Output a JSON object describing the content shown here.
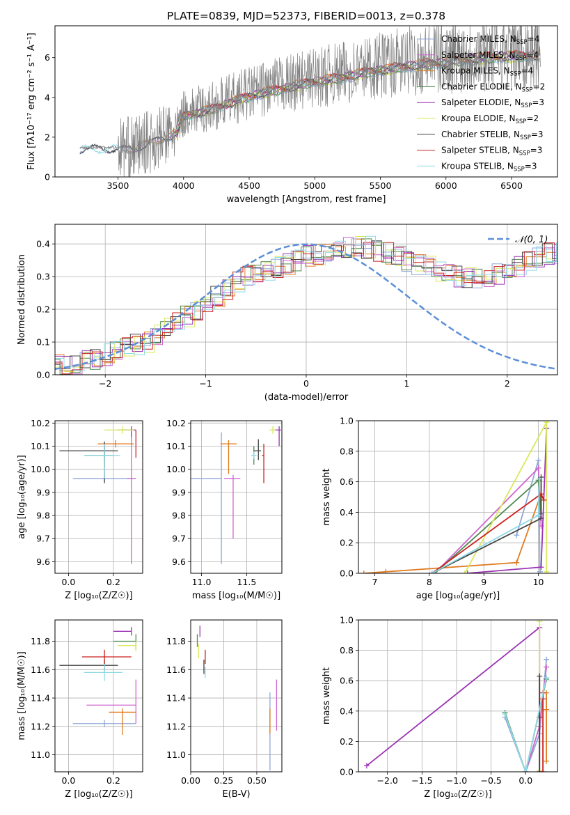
{
  "title": "PLATE=0839, MJD=52373, FIBERID=0013, z=0.378",
  "models": [
    {
      "name": "Chabrier MILES",
      "n": "4",
      "color": "#8fa8d6"
    },
    {
      "name": "Salpeter MILES",
      "n": "4",
      "color": "#d066d0"
    },
    {
      "name": "Kroupa MILES",
      "n": "4",
      "color": "#e07b20"
    },
    {
      "name": "Chabrier ELODIE",
      "n": "2",
      "color": "#4e8a4e"
    },
    {
      "name": "Salpeter ELODIE",
      "n": "3",
      "color": "#9b33b3"
    },
    {
      "name": "Kroupa ELODIE",
      "n": "2",
      "color": "#d9e85a"
    },
    {
      "name": "Chabrier STELIB",
      "n": "3",
      "color": "#444444"
    },
    {
      "name": "Salpeter STELIB",
      "n": "3",
      "color": "#cc1f1f"
    },
    {
      "name": "Kroupa STELIB",
      "n": "3",
      "color": "#8fd9e6"
    }
  ],
  "chart_data": [
    {
      "id": "spectrum",
      "type": "line",
      "xlabel": "wavelength [Angstrom, rest frame]",
      "ylabel": "Flux [fλ10⁻¹⁷ erg cm⁻² s⁻¹ A⁻¹]",
      "xlim": [
        3020,
        6850
      ],
      "ylim": [
        0,
        7.6
      ],
      "xticks": [
        3500,
        4000,
        4500,
        5000,
        5500,
        6000,
        6500
      ],
      "yticks": [
        0,
        2,
        4,
        6
      ],
      "data_color": "#808080",
      "data_range": [
        3210,
        6720
      ],
      "model_start": [
        3210,
        3520,
        3520,
        3930,
        3930,
        3930,
        3210,
        3930,
        3210
      ],
      "continuum": [
        [
          3210,
          1.45
        ],
        [
          3400,
          1.5
        ],
        [
          3600,
          1.45
        ],
        [
          3800,
          1.9
        ],
        [
          3950,
          2.3
        ],
        [
          4000,
          3.2
        ],
        [
          4200,
          3.5
        ],
        [
          4400,
          4.0
        ],
        [
          4600,
          4.4
        ],
        [
          4800,
          4.7
        ],
        [
          5000,
          5.0
        ],
        [
          5200,
          5.2
        ],
        [
          5400,
          5.5
        ],
        [
          5600,
          5.7
        ],
        [
          5800,
          5.9
        ],
        [
          6000,
          6.0
        ],
        [
          6200,
          6.2
        ],
        [
          6400,
          6.3
        ],
        [
          6720,
          6.4
        ]
      ]
    },
    {
      "id": "residuals",
      "type": "histogram",
      "xlabel": "(data-model)/error",
      "ylabel": "Normed distribution",
      "xlim": [
        -2.5,
        2.5
      ],
      "ylim": [
        0,
        0.46
      ],
      "xticks": [
        -2,
        -1,
        0,
        1,
        2
      ],
      "yticks": [
        0.0,
        0.1,
        0.2,
        0.3,
        0.4
      ],
      "bin_width": 0.1,
      "gaussian_label": "𝒩(0, 1)",
      "gaussian_color": "#5b8fd9",
      "base_counts": [
        0.03,
        0.03,
        0.035,
        0.04,
        0.05,
        0.06,
        0.07,
        0.08,
        0.09,
        0.1,
        0.12,
        0.14,
        0.16,
        0.18,
        0.2,
        0.22,
        0.24,
        0.26,
        0.28,
        0.3,
        0.31,
        0.32,
        0.33,
        0.34,
        0.35,
        0.36,
        0.37,
        0.38,
        0.385,
        0.39,
        0.39,
        0.39,
        0.38,
        0.37,
        0.36,
        0.35,
        0.34,
        0.33,
        0.32,
        0.31,
        0.3,
        0.3,
        0.3,
        0.3,
        0.31,
        0.32,
        0.33,
        0.35,
        0.36,
        0.37,
        0.37,
        0.38,
        0.38,
        0.37,
        0.36,
        0.35,
        0.34,
        0.32,
        0.3,
        0.29,
        0.27,
        0.25,
        0.23,
        0.21,
        0.2,
        0.18,
        0.17,
        0.15,
        0.14,
        0.13,
        0.12,
        0.11,
        0.1,
        0.09,
        0.08,
        0.07,
        0.06,
        0.06,
        0.05,
        0.05
      ]
    },
    {
      "id": "age_vs_Z",
      "type": "errorbar",
      "xlabel": "Z [log₁₀(Z/Z☉)]",
      "ylabel": "age  [log₁₀(age/yr)]",
      "xlim": [
        -0.06,
        0.33
      ],
      "ylim": [
        9.55,
        10.21
      ],
      "xticks": [
        0.0,
        0.2
      ],
      "yticks": [
        9.6,
        9.7,
        9.8,
        9.9,
        10.0,
        10.1,
        10.2
      ],
      "points": [
        {
          "x": 0.16,
          "y": 9.96,
          "xerr": [
            0.14,
            0.14
          ],
          "yerr": [
            0.0,
            0.0
          ],
          "c": 0
        },
        {
          "x": 0.28,
          "y": 9.96,
          "xerr": [
            0.02,
            0.02
          ],
          "yerr": [
            0.37,
            0.2
          ],
          "c": 1
        },
        {
          "x": 0.21,
          "y": 10.11,
          "xerr": [
            0.08,
            0.08
          ],
          "yerr": [
            0.0,
            0.0
          ],
          "c": 2
        },
        {
          "x": 0.16,
          "y": 10.06,
          "xerr": [
            0.09,
            0.04
          ],
          "yerr": [
            0.05,
            0.04
          ],
          "c": 3
        },
        {
          "x": 0.28,
          "y": 10.17,
          "xerr": [
            0.06,
            0.02
          ],
          "yerr": [
            0.03,
            0.0
          ],
          "c": 4
        },
        {
          "x": 0.24,
          "y": 10.17,
          "xerr": [
            0.08,
            0.05
          ],
          "yerr": [
            0.0,
            0.0
          ],
          "c": 5
        },
        {
          "x": 0.16,
          "y": 10.08,
          "xerr": [
            0.2,
            0.06
          ],
          "yerr": [
            0.14,
            0.04
          ],
          "c": 6
        },
        {
          "x": 0.3,
          "y": 10.1,
          "xerr": [
            0.0,
            0.0
          ],
          "yerr": [
            0.05,
            0.07
          ],
          "c": 7
        },
        {
          "x": 0.16,
          "y": 10.06,
          "xerr": [
            0.09,
            0.07
          ],
          "yerr": [
            0.1,
            0.05
          ],
          "c": 8
        }
      ]
    },
    {
      "id": "age_vs_mass",
      "type": "errorbar",
      "xlabel": "mass [log₁₀(M/M☉)]",
      "ylabel": "",
      "xlim": [
        10.88,
        11.89
      ],
      "ylim": [
        9.55,
        10.21
      ],
      "xticks": [
        11.0,
        11.5
      ],
      "yticks": [
        9.6,
        9.7,
        9.8,
        9.9,
        10.0,
        10.1,
        10.2
      ],
      "points": [
        {
          "x": 11.22,
          "y": 9.96,
          "xerr": [
            0.35,
            0.0
          ],
          "yerr": [
            0.37,
            0.2
          ],
          "c": 0
        },
        {
          "x": 11.35,
          "y": 9.96,
          "xerr": [
            0.1,
            0.08
          ],
          "yerr": [
            0.26,
            0.0
          ],
          "c": 1
        },
        {
          "x": 11.3,
          "y": 10.11,
          "xerr": [
            0.09,
            0.09
          ],
          "yerr": [
            0.13,
            0.0
          ],
          "c": 2
        },
        {
          "x": 11.58,
          "y": 10.06,
          "xerr": [
            0.0,
            0.0
          ],
          "yerr": [
            0.04,
            0.04
          ],
          "c": 3
        },
        {
          "x": 11.86,
          "y": 10.17,
          "xerr": [
            0.06,
            0.02
          ],
          "yerr": [
            0.07,
            0.0
          ],
          "c": 4
        },
        {
          "x": 11.79,
          "y": 10.17,
          "xerr": [
            0.04,
            0.03
          ],
          "yerr": [
            0.0,
            0.0
          ],
          "c": 5
        },
        {
          "x": 11.63,
          "y": 10.08,
          "xerr": [
            0.05,
            0.03
          ],
          "yerr": [
            0.04,
            0.05
          ],
          "c": 6
        },
        {
          "x": 11.69,
          "y": 10.06,
          "xerr": [
            0.02,
            0.0
          ],
          "yerr": [
            0.12,
            0.05
          ],
          "c": 7
        },
        {
          "x": 11.58,
          "y": 10.06,
          "xerr": [
            0.03,
            0.03
          ],
          "yerr": [
            0.0,
            0.0
          ],
          "c": 8
        }
      ]
    },
    {
      "id": "weight_vs_age",
      "type": "line",
      "xlabel": "age  [log₁₀(age/yr)]",
      "ylabel": "mass weight",
      "xlim": [
        6.7,
        10.35
      ],
      "ylim": [
        0,
        1
      ],
      "xticks": [
        7,
        8,
        9,
        10
      ],
      "yticks": [
        0.0,
        0.2,
        0.4,
        0.6,
        0.8,
        1.0
      ],
      "series": [
        {
          "c": 0,
          "pts": [
            [
              9.6,
              0.25
            ],
            [
              10.0,
              0.74
            ],
            [
              10.03,
              0.01
            ]
          ]
        },
        {
          "c": 1,
          "pts": [
            [
              8.1,
              0.0
            ],
            [
              10.0,
              0.69
            ],
            [
              10.05,
              0.31
            ]
          ]
        },
        {
          "c": 2,
          "pts": [
            [
              6.8,
              0.0
            ],
            [
              7.2,
              0.01
            ],
            [
              9.6,
              0.07
            ],
            [
              10.05,
              0.52
            ]
          ]
        },
        {
          "c": 3,
          "pts": [
            [
              8.1,
              0.0
            ],
            [
              10.0,
              0.61
            ],
            [
              10.05,
              0.39
            ]
          ]
        },
        {
          "c": 4,
          "pts": [
            [
              8.7,
              0.0
            ],
            [
              10.05,
              0.04
            ],
            [
              10.15,
              0.95
            ]
          ]
        },
        {
          "c": 5,
          "pts": [
            [
              8.65,
              0.0
            ],
            [
              10.15,
              0.99
            ],
            [
              10.15,
              0.01
            ]
          ]
        },
        {
          "c": 6,
          "pts": [
            [
              8.05,
              0.0
            ],
            [
              10.05,
              0.36
            ],
            [
              10.05,
              0.63
            ]
          ]
        },
        {
          "c": 7,
          "pts": [
            [
              8.05,
              0.0
            ],
            [
              10.05,
              0.52
            ],
            [
              10.1,
              0.48
            ]
          ]
        },
        {
          "c": 8,
          "pts": [
            [
              8.05,
              0.0
            ],
            [
              10.0,
              0.38
            ],
            [
              10.02,
              0.62
            ]
          ]
        }
      ]
    },
    {
      "id": "mass_vs_Z",
      "type": "errorbar",
      "xlabel": "Z [log₁₀(Z/Z☉)]",
      "ylabel": "mass [log₁₀(M/M☉)]",
      "xlim": [
        -0.06,
        0.33
      ],
      "ylim": [
        10.88,
        11.95
      ],
      "xticks": [
        0.0,
        0.2
      ],
      "yticks": [
        11.0,
        11.2,
        11.4,
        11.6,
        11.8
      ],
      "points": [
        {
          "x": 0.16,
          "y": 11.22,
          "xerr": [
            0.14,
            0.14
          ],
          "yerr": [
            0.0,
            0.0
          ],
          "c": 0
        },
        {
          "x": 0.3,
          "y": 11.35,
          "xerr": [
            0.22,
            0.0
          ],
          "yerr": [
            0.13,
            0.18
          ],
          "c": 1
        },
        {
          "x": 0.24,
          "y": 11.3,
          "xerr": [
            0.06,
            0.06
          ],
          "yerr": [
            0.16,
            0.0
          ],
          "c": 2
        },
        {
          "x": 0.3,
          "y": 11.8,
          "xerr": [
            0.1,
            0.0
          ],
          "yerr": [
            0.06,
            0.05
          ],
          "c": 3
        },
        {
          "x": 0.28,
          "y": 11.87,
          "xerr": [
            0.08,
            0.0
          ],
          "yerr": [
            0.03,
            0.03
          ],
          "c": 4
        },
        {
          "x": 0.3,
          "y": 11.77,
          "xerr": [
            0.08,
            0.0
          ],
          "yerr": [
            0.04,
            0.03
          ],
          "c": 5
        },
        {
          "x": 0.16,
          "y": 11.63,
          "xerr": [
            0.2,
            0.06
          ],
          "yerr": [
            0.04,
            0.04
          ],
          "c": 6
        },
        {
          "x": 0.16,
          "y": 11.69,
          "xerr": [
            0.1,
            0.12
          ],
          "yerr": [
            0.05,
            0.05
          ],
          "c": 7
        },
        {
          "x": 0.16,
          "y": 11.58,
          "xerr": [
            0.09,
            0.08
          ],
          "yerr": [
            0.06,
            0.06
          ],
          "c": 8
        }
      ]
    },
    {
      "id": "mass_vs_ebv",
      "type": "errorbar",
      "xlabel": "E(B-V)",
      "ylabel": "",
      "xlim": [
        0,
        0.69
      ],
      "ylim": [
        10.88,
        11.95
      ],
      "xticks": [
        0.0,
        0.25,
        0.5
      ],
      "yticks": [
        11.0,
        11.2,
        11.4,
        11.6,
        11.8
      ],
      "points": [
        {
          "x": 0.6,
          "y": 11.22,
          "xerr": [
            0.0,
            0.0
          ],
          "yerr": [
            0.33,
            0.22
          ],
          "c": 0
        },
        {
          "x": 0.65,
          "y": 11.35,
          "xerr": [
            0.0,
            0.0
          ],
          "yerr": [
            0.18,
            0.18
          ],
          "c": 1
        },
        {
          "x": 0.6,
          "y": 11.3,
          "xerr": [
            0.0,
            0.0
          ],
          "yerr": [
            0.15,
            0.0
          ],
          "c": 2
        },
        {
          "x": 0.05,
          "y": 11.8,
          "xerr": [
            0.0,
            0.0
          ],
          "yerr": [
            0.04,
            0.05
          ],
          "c": 3
        },
        {
          "x": 0.07,
          "y": 11.87,
          "xerr": [
            0.0,
            0.0
          ],
          "yerr": [
            0.04,
            0.04
          ],
          "c": 4
        },
        {
          "x": 0.06,
          "y": 11.74,
          "xerr": [
            0.0,
            0.0
          ],
          "yerr": [
            0.06,
            0.04
          ],
          "c": 5
        },
        {
          "x": 0.1,
          "y": 11.63,
          "xerr": [
            0.0,
            0.0
          ],
          "yerr": [
            0.06,
            0.04
          ],
          "c": 6
        },
        {
          "x": 0.11,
          "y": 11.69,
          "xerr": [
            0.0,
            0.0
          ],
          "yerr": [
            0.05,
            0.05
          ],
          "c": 7
        },
        {
          "x": 0.11,
          "y": 11.58,
          "xerr": [
            0.0,
            0.0
          ],
          "yerr": [
            0.04,
            0.04
          ],
          "c": 8
        }
      ]
    },
    {
      "id": "weight_vs_Z",
      "type": "line",
      "xlabel": "Z [log₁₀(Z/Z☉)]",
      "ylabel": "mass weight",
      "xlim": [
        -2.42,
        0.46
      ],
      "ylim": [
        0,
        1
      ],
      "xticks": [
        -2.0,
        -1.5,
        -1.0,
        -0.5,
        0.0
      ],
      "yticks": [
        0.0,
        0.2,
        0.4,
        0.6,
        0.8,
        1.0
      ],
      "series": [
        {
          "c": 0,
          "pts": [
            [
              -0.3,
              0.36
            ],
            [
              0.0,
              0.0
            ],
            [
              0.2,
              0.25
            ],
            [
              0.3,
              0.74
            ]
          ]
        },
        {
          "c": 1,
          "pts": [
            [
              0.0,
              0.0
            ],
            [
              0.2,
              0.3
            ],
            [
              0.3,
              0.69
            ]
          ]
        },
        {
          "c": 2,
          "pts": [
            [
              0.3,
              0.07
            ],
            [
              0.3,
              0.52
            ],
            [
              0.3,
              0.41
            ]
          ]
        },
        {
          "c": 3,
          "pts": [
            [
              -0.3,
              0.39
            ],
            [
              0.0,
              0.0
            ],
            [
              0.3,
              0.61
            ]
          ]
        },
        {
          "c": 4,
          "pts": [
            [
              -2.3,
              0.04
            ],
            [
              0.2,
              0.95
            ],
            [
              0.2,
              0.0
            ]
          ]
        },
        {
          "c": 5,
          "pts": [
            [
              0.2,
              0.99
            ],
            [
              0.2,
              0.01
            ]
          ]
        },
        {
          "c": 6,
          "pts": [
            [
              0.2,
              0.0
            ],
            [
              0.2,
              0.36
            ],
            [
              0.2,
              0.63
            ]
          ]
        },
        {
          "c": 7,
          "pts": [
            [
              0.25,
              0.0
            ],
            [
              0.25,
              0.48
            ],
            [
              0.25,
              0.52
            ]
          ]
        },
        {
          "c": 8,
          "pts": [
            [
              -0.3,
              0.38
            ],
            [
              0.0,
              0.0
            ],
            [
              0.3,
              0.62
            ]
          ]
        }
      ]
    }
  ]
}
